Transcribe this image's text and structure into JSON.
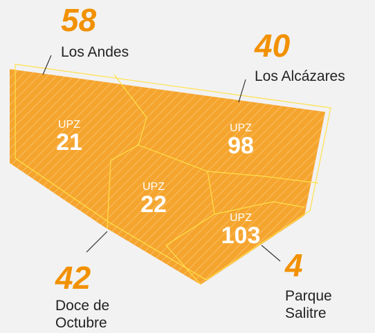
{
  "callouts": [
    {
      "number": "58",
      "name": [
        "Los Andes"
      ]
    },
    {
      "number": "40",
      "name": [
        "Los Alcázares"
      ]
    },
    {
      "number": "42",
      "name": [
        "Doce de",
        "Octubre"
      ]
    },
    {
      "number": "4",
      "name": [
        "Parque",
        "Salitre"
      ]
    }
  ],
  "upz": [
    {
      "prefix": "UPZ",
      "number": "21"
    },
    {
      "prefix": "UPZ",
      "number": "98"
    },
    {
      "prefix": "UPZ",
      "number": "22"
    },
    {
      "prefix": "UPZ",
      "number": "103"
    }
  ]
}
